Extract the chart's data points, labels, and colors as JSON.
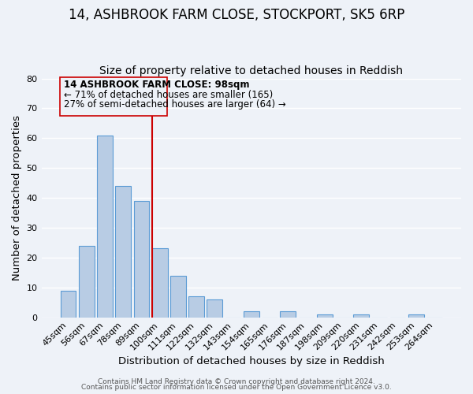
{
  "title": "14, ASHBROOK FARM CLOSE, STOCKPORT, SK5 6RP",
  "subtitle": "Size of property relative to detached houses in Reddish",
  "xlabel": "Distribution of detached houses by size in Reddish",
  "ylabel": "Number of detached properties",
  "footer_line1": "Contains HM Land Registry data © Crown copyright and database right 2024.",
  "footer_line2": "Contains public sector information licensed under the Open Government Licence v3.0.",
  "bin_labels": [
    "45sqm",
    "56sqm",
    "67sqm",
    "78sqm",
    "89sqm",
    "100sqm",
    "111sqm",
    "122sqm",
    "132sqm",
    "143sqm",
    "154sqm",
    "165sqm",
    "176sqm",
    "187sqm",
    "198sqm",
    "209sqm",
    "220sqm",
    "231sqm",
    "242sqm",
    "253sqm",
    "264sqm"
  ],
  "bar_values": [
    9,
    24,
    61,
    44,
    39,
    23,
    14,
    7,
    6,
    0,
    2,
    0,
    2,
    0,
    1,
    0,
    1,
    0,
    0,
    1,
    0
  ],
  "bar_color": "#b8cce4",
  "bar_edge_color": "#5b9bd5",
  "vline_index": 5,
  "vline_color": "#cc0000",
  "ylim": [
    0,
    80
  ],
  "yticks": [
    0,
    10,
    20,
    30,
    40,
    50,
    60,
    70,
    80
  ],
  "annotation_title": "14 ASHBROOK FARM CLOSE: 98sqm",
  "annotation_line2": "← 71% of detached houses are smaller (165)",
  "annotation_line3": "27% of semi-detached houses are larger (64) →",
  "background_color": "#eef2f8",
  "grid_color": "#ffffff",
  "title_fontsize": 12,
  "subtitle_fontsize": 10,
  "axis_label_fontsize": 9.5,
  "tick_fontsize": 8,
  "annotation_fontsize": 8.5,
  "footer_fontsize": 6.5
}
